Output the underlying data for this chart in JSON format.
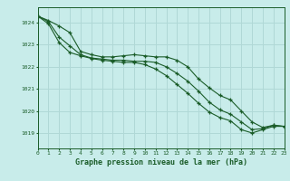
{
  "title": "Graphe pression niveau de la mer (hPa)",
  "background_color": "#c8ecea",
  "grid_color": "#b0d8d6",
  "line_color": "#1a5c28",
  "xlim": [
    0,
    23
  ],
  "ylim": [
    1018.3,
    1024.7
  ],
  "yticks": [
    1019,
    1020,
    1021,
    1022,
    1023,
    1024
  ],
  "xticks": [
    0,
    1,
    2,
    3,
    4,
    5,
    6,
    7,
    8,
    9,
    10,
    11,
    12,
    13,
    14,
    15,
    16,
    17,
    18,
    19,
    20,
    21,
    22,
    23
  ],
  "series": [
    [
      1024.3,
      1024.1,
      1023.85,
      1023.55,
      1022.7,
      1022.55,
      1022.45,
      1022.45,
      1022.5,
      1022.55,
      1022.5,
      1022.45,
      1022.45,
      1022.3,
      1022.0,
      1021.45,
      1021.05,
      1020.7,
      1020.5,
      1020.0,
      1019.5,
      1019.25,
      1019.35,
      1019.3
    ],
    [
      1024.3,
      1024.05,
      1023.35,
      1022.95,
      1022.55,
      1022.4,
      1022.35,
      1022.3,
      1022.3,
      1022.25,
      1022.25,
      1022.2,
      1022.0,
      1021.7,
      1021.35,
      1020.9,
      1020.4,
      1020.05,
      1019.85,
      1019.5,
      1019.15,
      1019.2,
      1019.35,
      1019.3
    ],
    [
      1024.3,
      1023.95,
      1023.1,
      1022.65,
      1022.5,
      1022.38,
      1022.3,
      1022.25,
      1022.2,
      1022.2,
      1022.1,
      1021.9,
      1021.6,
      1021.2,
      1020.8,
      1020.35,
      1019.95,
      1019.7,
      1019.55,
      1019.15,
      1019.0,
      1019.15,
      1019.3,
      1019.3
    ]
  ]
}
